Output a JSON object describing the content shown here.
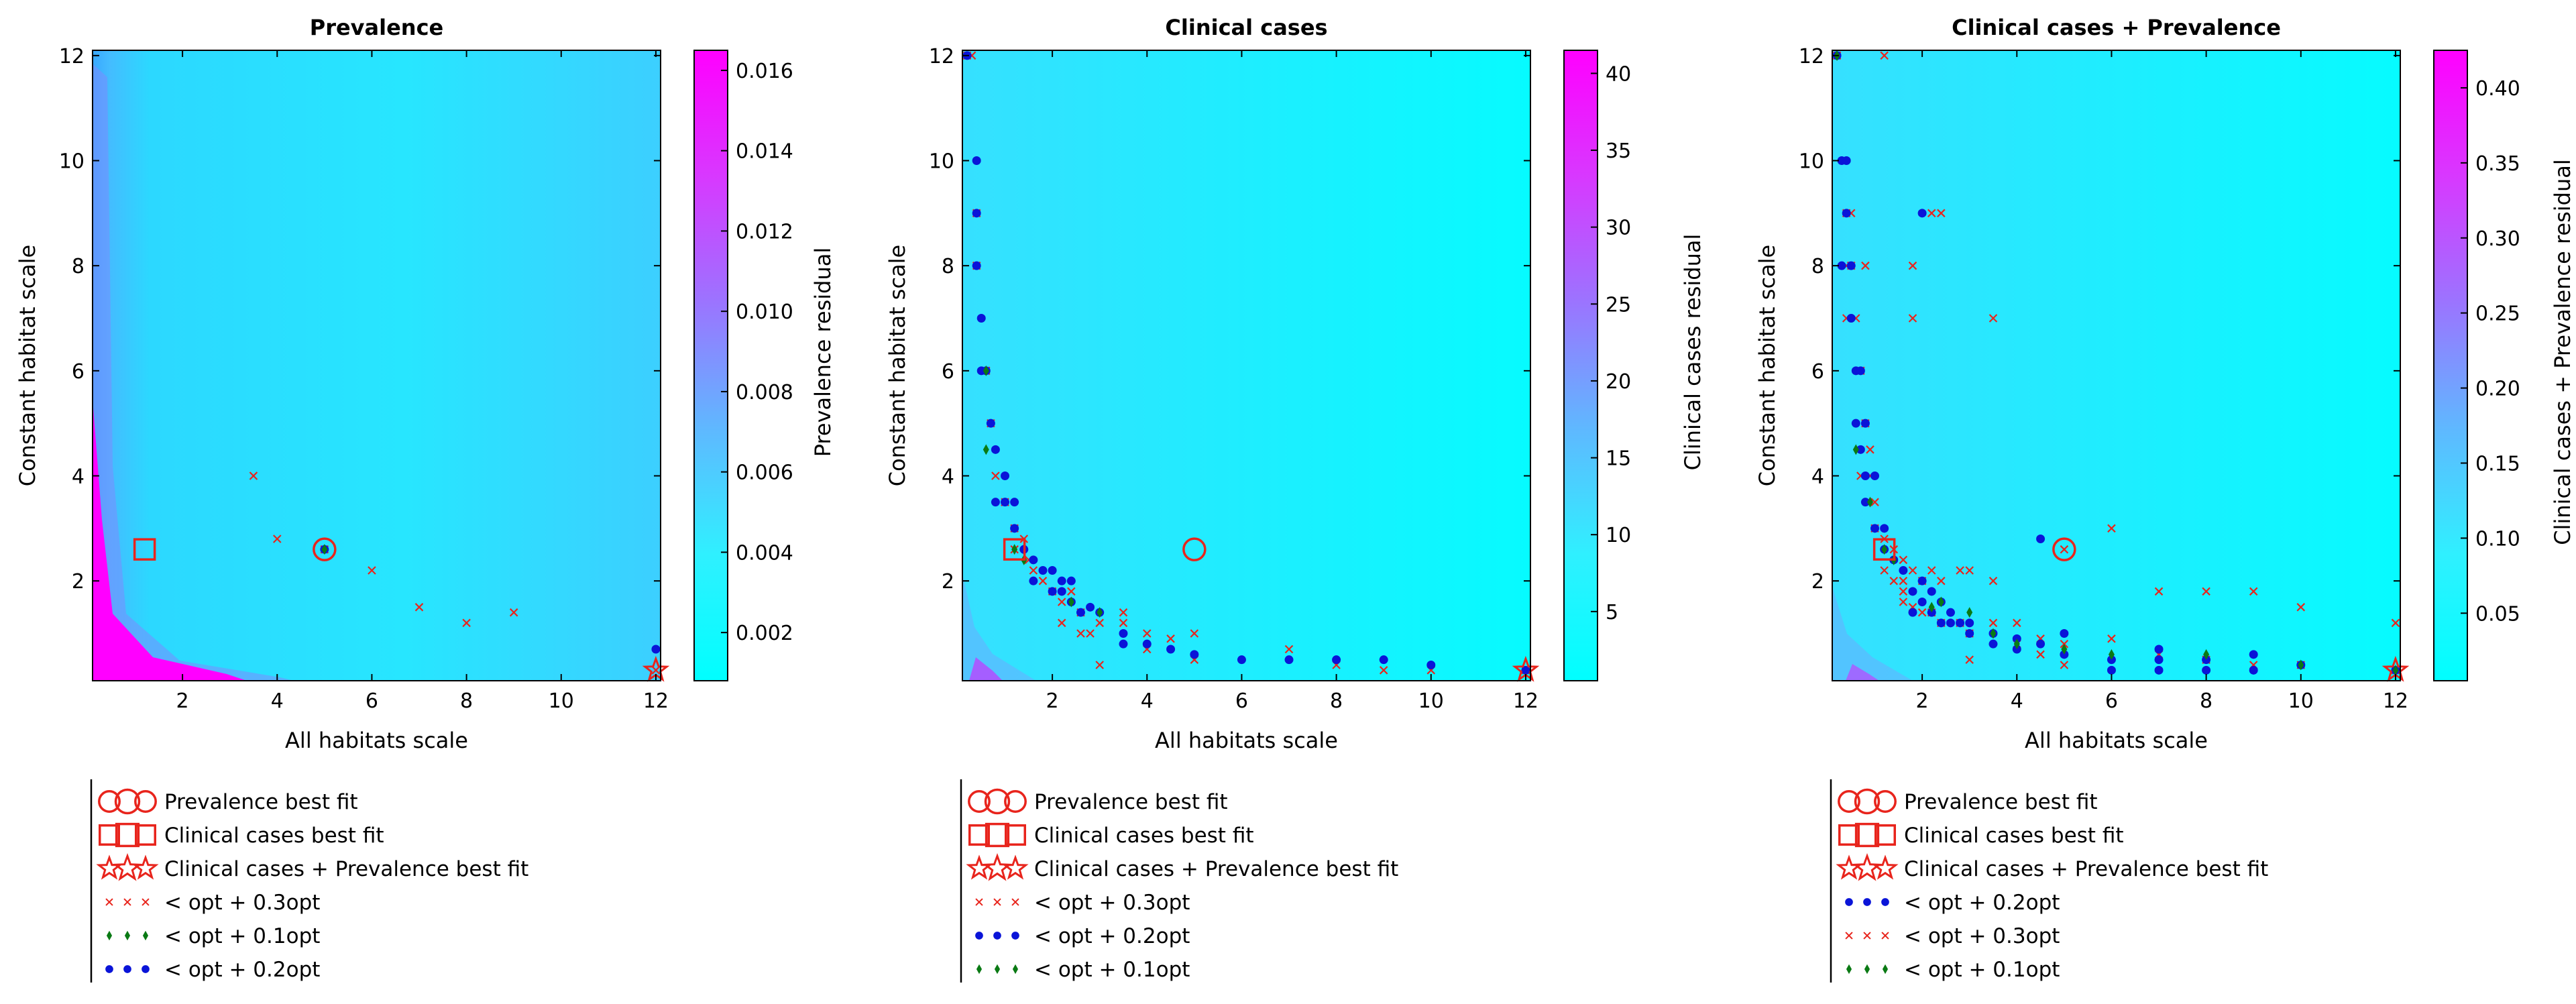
{
  "figure": {
    "colorbar_gradient": [
      "#00ffff",
      "#2ff0ff",
      "#5fb8ff",
      "#9b74ff",
      "#d838ff",
      "#ff00ff"
    ],
    "marker_color_red": "#e8241c",
    "marker_color_blue": "#0a14d8",
    "marker_color_green": "#0a7a14"
  },
  "chart_data": [
    {
      "type": "heatmap",
      "title": "Prevalence",
      "xlabel": "All habitats scale",
      "ylabel": "Constant habitat scale",
      "colorbar_label": "Prevalence residual",
      "xlim": [
        0.1,
        12.1
      ],
      "ylim": [
        0.1,
        12.1
      ],
      "xticks": [
        "2",
        "4",
        "6",
        "8",
        "10",
        "12"
      ],
      "yticks": [
        "2",
        "4",
        "6",
        "8",
        "10",
        "12"
      ],
      "cbar_range": [
        0.0008,
        0.0165
      ],
      "cbar_ticks": [
        "0.002",
        "0.004",
        "0.006",
        "0.008",
        "0.010",
        "0.012",
        "0.014",
        "0.016"
      ],
      "prevalence_best": [
        5.0,
        2.6
      ],
      "clinical_best": [
        1.2,
        2.6
      ],
      "combined_best": [
        12.0,
        0.3
      ],
      "points_x_03": [
        [
          3.5,
          4.0
        ],
        [
          4.0,
          2.8
        ],
        [
          5.0,
          2.6
        ],
        [
          6.0,
          2.2
        ],
        [
          7.0,
          1.5
        ],
        [
          8.0,
          1.2
        ],
        [
          9.0,
          1.4
        ],
        [
          12.0,
          0.3
        ]
      ],
      "points_green_01": [
        [
          5.0,
          2.6
        ]
      ],
      "points_blue_02": [
        [
          5.0,
          2.6
        ],
        [
          12.0,
          0.7
        ]
      ],
      "legend": [
        {
          "marker": "circle",
          "label": "Prevalence best fit"
        },
        {
          "marker": "square",
          "label": "Clinical cases best fit"
        },
        {
          "marker": "star",
          "label": "Clinical cases + Prevalence best fit"
        },
        {
          "marker": "x",
          "label": "< opt + 0.3opt"
        },
        {
          "marker": "diamond",
          "label": "< opt + 0.1opt"
        },
        {
          "marker": "dot",
          "label": "< opt + 0.2opt"
        }
      ]
    },
    {
      "type": "heatmap",
      "title": "Clinical cases",
      "xlabel": "All habitats scale",
      "ylabel": "Constant habitat scale",
      "colorbar_label": "Clinical cases residual",
      "xlim": [
        0.1,
        12.1
      ],
      "ylim": [
        0.1,
        12.1
      ],
      "xticks": [
        "2",
        "4",
        "6",
        "8",
        "10",
        "12"
      ],
      "yticks": [
        "2",
        "4",
        "6",
        "8",
        "10",
        "12"
      ],
      "cbar_range": [
        0.5,
        41.5
      ],
      "cbar_ticks": [
        "5",
        "10",
        "15",
        "20",
        "25",
        "30",
        "35",
        "40"
      ],
      "prevalence_best": [
        5.0,
        2.6
      ],
      "clinical_best": [
        1.2,
        2.6
      ],
      "combined_best": [
        12.0,
        0.3
      ],
      "points_x_03": [
        [
          0.2,
          12.0
        ],
        [
          0.3,
          12.0
        ],
        [
          0.4,
          9.0
        ],
        [
          0.4,
          8.0
        ],
        [
          0.6,
          6.0
        ],
        [
          0.7,
          5.0
        ],
        [
          0.8,
          4.0
        ],
        [
          1.0,
          3.5
        ],
        [
          1.2,
          3.0
        ],
        [
          1.4,
          2.8
        ],
        [
          1.2,
          2.6
        ],
        [
          1.5,
          2.4
        ],
        [
          1.6,
          2.2
        ],
        [
          1.8,
          2.0
        ],
        [
          2.0,
          1.8
        ],
        [
          2.2,
          1.6
        ],
        [
          2.6,
          1.4
        ],
        [
          3.0,
          1.2
        ],
        [
          3.5,
          1.4
        ],
        [
          4.0,
          1.0
        ],
        [
          4.5,
          0.9
        ],
        [
          5.0,
          1.0
        ],
        [
          2.2,
          1.2
        ],
        [
          2.6,
          1.0
        ],
        [
          3.0,
          0.4
        ],
        [
          4.0,
          0.7
        ],
        [
          5.0,
          0.5
        ],
        [
          7.0,
          0.7
        ],
        [
          8.0,
          0.4
        ],
        [
          9.0,
          0.3
        ],
        [
          10.0,
          0.3
        ],
        [
          12.0,
          0.3
        ],
        [
          3.5,
          1.2
        ],
        [
          2.4,
          1.8
        ],
        [
          2.8,
          1.0
        ]
      ],
      "points_green_01": [
        [
          0.6,
          6.0
        ],
        [
          0.6,
          4.5
        ],
        [
          1.2,
          2.6
        ],
        [
          1.4,
          2.4
        ],
        [
          2.4,
          1.6
        ],
        [
          3.0,
          1.4
        ]
      ],
      "points_blue_02": [
        [
          0.2,
          12.0
        ],
        [
          0.4,
          10.0
        ],
        [
          0.4,
          9.0
        ],
        [
          0.4,
          8.0
        ],
        [
          0.5,
          7.0
        ],
        [
          0.5,
          6.0
        ],
        [
          0.6,
          6.0
        ],
        [
          0.7,
          5.0
        ],
        [
          0.8,
          4.5
        ],
        [
          1.0,
          4.0
        ],
        [
          0.8,
          3.5
        ],
        [
          1.0,
          3.5
        ],
        [
          1.2,
          3.5
        ],
        [
          1.2,
          3.0
        ],
        [
          1.4,
          2.6
        ],
        [
          1.6,
          2.4
        ],
        [
          1.6,
          2.0
        ],
        [
          1.8,
          2.2
        ],
        [
          2.0,
          2.2
        ],
        [
          2.2,
          2.0
        ],
        [
          2.4,
          2.0
        ],
        [
          2.2,
          1.8
        ],
        [
          2.4,
          1.6
        ],
        [
          2.6,
          1.4
        ],
        [
          2.8,
          1.5
        ],
        [
          3.0,
          1.4
        ],
        [
          3.5,
          1.0
        ],
        [
          4.0,
          0.8
        ],
        [
          4.5,
          0.7
        ],
        [
          5.0,
          0.6
        ],
        [
          6.0,
          0.5
        ],
        [
          7.0,
          0.5
        ],
        [
          8.0,
          0.5
        ],
        [
          9.0,
          0.5
        ],
        [
          10.0,
          0.4
        ],
        [
          12.0,
          0.3
        ],
        [
          2.0,
          1.8
        ],
        [
          3.5,
          0.8
        ]
      ],
      "legend": [
        {
          "marker": "circle",
          "label": "Prevalence best fit"
        },
        {
          "marker": "square",
          "label": "Clinical cases best fit"
        },
        {
          "marker": "star",
          "label": "Clinical cases + Prevalence best fit"
        },
        {
          "marker": "x",
          "label": "< opt + 0.3opt"
        },
        {
          "marker": "dot",
          "label": "< opt + 0.2opt"
        },
        {
          "marker": "diamond",
          "label": "< opt + 0.1opt"
        }
      ]
    },
    {
      "type": "heatmap",
      "title": "Clinical cases + Prevalence",
      "xlabel": "All habitats scale",
      "ylabel": "Constant habitat scale",
      "colorbar_label": "Clinical cases + Prevalence residual",
      "xlim": [
        0.1,
        12.1
      ],
      "ylim": [
        0.1,
        12.1
      ],
      "xticks": [
        "2",
        "4",
        "6",
        "8",
        "10",
        "12"
      ],
      "yticks": [
        "2",
        "4",
        "6",
        "8",
        "10",
        "12"
      ],
      "cbar_range": [
        0.005,
        0.425
      ],
      "cbar_ticks": [
        "0.05",
        "0.10",
        "0.15",
        "0.20",
        "0.25",
        "0.30",
        "0.35",
        "0.40"
      ],
      "prevalence_best": [
        5.0,
        2.6
      ],
      "clinical_best": [
        1.2,
        2.6
      ],
      "combined_best": [
        12.0,
        0.3
      ],
      "points_x_03": [
        [
          0.2,
          12.0
        ],
        [
          1.2,
          12.0
        ],
        [
          0.4,
          9.0
        ],
        [
          0.5,
          9.0
        ],
        [
          0.4,
          8.0
        ],
        [
          0.5,
          8.0
        ],
        [
          0.8,
          8.0
        ],
        [
          1.8,
          8.0
        ],
        [
          0.4,
          7.0
        ],
        [
          0.6,
          7.0
        ],
        [
          1.8,
          7.0
        ],
        [
          3.5,
          7.0
        ],
        [
          2.2,
          9.0
        ],
        [
          2.4,
          9.0
        ],
        [
          0.7,
          6.0
        ],
        [
          0.8,
          5.0
        ],
        [
          0.9,
          4.5
        ],
        [
          0.7,
          4.0
        ],
        [
          0.9,
          4.0
        ],
        [
          1.0,
          3.5
        ],
        [
          1.0,
          3.0
        ],
        [
          1.2,
          2.8
        ],
        [
          1.4,
          2.6
        ],
        [
          1.6,
          2.4
        ],
        [
          1.8,
          2.2
        ],
        [
          2.0,
          2.0
        ],
        [
          2.2,
          2.2
        ],
        [
          2.4,
          2.0
        ],
        [
          2.8,
          2.2
        ],
        [
          3.0,
          2.2
        ],
        [
          3.5,
          2.0
        ],
        [
          1.6,
          2.0
        ],
        [
          1.6,
          1.8
        ],
        [
          1.6,
          1.6
        ],
        [
          1.8,
          1.5
        ],
        [
          2.0,
          1.4
        ],
        [
          2.2,
          1.4
        ],
        [
          2.4,
          1.2
        ],
        [
          2.8,
          1.2
        ],
        [
          3.0,
          1.0
        ],
        [
          3.5,
          1.2
        ],
        [
          4.0,
          1.2
        ],
        [
          4.0,
          0.8
        ],
        [
          4.5,
          0.9
        ],
        [
          4.5,
          0.6
        ],
        [
          5.0,
          0.8
        ],
        [
          5.0,
          0.4
        ],
        [
          6.0,
          0.9
        ],
        [
          6.0,
          3.0
        ],
        [
          7.0,
          1.8
        ],
        [
          8.0,
          1.8
        ],
        [
          9.0,
          1.8
        ],
        [
          10.0,
          1.5
        ],
        [
          12.0,
          1.2
        ],
        [
          7.0,
          0.6
        ],
        [
          8.0,
          0.5
        ],
        [
          9.0,
          0.4
        ],
        [
          10.0,
          0.4
        ],
        [
          12.0,
          0.3
        ],
        [
          3.0,
          0.5
        ],
        [
          5.0,
          2.6
        ],
        [
          1.2,
          2.2
        ],
        [
          1.4,
          2.0
        ]
      ],
      "points_green_01": [
        [
          0.2,
          12.0
        ],
        [
          0.6,
          4.5
        ],
        [
          0.9,
          3.5
        ],
        [
          1.2,
          2.6
        ],
        [
          1.4,
          2.4
        ],
        [
          2.2,
          1.5
        ],
        [
          2.4,
          1.6
        ],
        [
          3.0,
          1.4
        ],
        [
          3.5,
          1.0
        ],
        [
          4.0,
          0.8
        ],
        [
          5.0,
          0.7
        ],
        [
          6.0,
          0.6
        ],
        [
          8.0,
          0.6
        ],
        [
          10.0,
          0.4
        ],
        [
          12.0,
          0.3
        ]
      ],
      "points_blue_02": [
        [
          0.2,
          12.0
        ],
        [
          0.3,
          10.0
        ],
        [
          0.4,
          10.0
        ],
        [
          0.4,
          9.0
        ],
        [
          0.3,
          8.0
        ],
        [
          0.5,
          8.0
        ],
        [
          0.5,
          7.0
        ],
        [
          0.6,
          6.0
        ],
        [
          0.7,
          6.0
        ],
        [
          0.6,
          5.0
        ],
        [
          0.8,
          5.0
        ],
        [
          0.7,
          4.5
        ],
        [
          0.8,
          4.0
        ],
        [
          1.0,
          4.0
        ],
        [
          0.8,
          3.5
        ],
        [
          1.0,
          3.0
        ],
        [
          1.2,
          3.0
        ],
        [
          1.2,
          2.6
        ],
        [
          1.4,
          2.4
        ],
        [
          1.6,
          2.2
        ],
        [
          1.8,
          1.8
        ],
        [
          2.0,
          2.0
        ],
        [
          2.0,
          1.6
        ],
        [
          2.2,
          1.8
        ],
        [
          2.2,
          1.4
        ],
        [
          2.4,
          1.6
        ],
        [
          2.4,
          1.2
        ],
        [
          2.6,
          1.4
        ],
        [
          2.8,
          1.2
        ],
        [
          3.0,
          1.2
        ],
        [
          3.0,
          1.0
        ],
        [
          3.5,
          1.0
        ],
        [
          3.5,
          0.8
        ],
        [
          4.0,
          0.9
        ],
        [
          4.0,
          0.7
        ],
        [
          4.5,
          0.8
        ],
        [
          5.0,
          1.0
        ],
        [
          5.0,
          0.6
        ],
        [
          6.0,
          0.5
        ],
        [
          6.0,
          0.3
        ],
        [
          7.0,
          0.7
        ],
        [
          7.0,
          0.5
        ],
        [
          7.0,
          0.3
        ],
        [
          8.0,
          0.5
        ],
        [
          8.0,
          0.3
        ],
        [
          9.0,
          0.6
        ],
        [
          9.0,
          0.3
        ],
        [
          10.0,
          0.4
        ],
        [
          12.0,
          0.3
        ],
        [
          4.5,
          2.8
        ],
        [
          2.0,
          9.0
        ],
        [
          1.8,
          1.4
        ],
        [
          2.6,
          1.2
        ]
      ],
      "legend": [
        {
          "marker": "circle",
          "label": "Prevalence best fit"
        },
        {
          "marker": "square",
          "label": "Clinical cases best fit"
        },
        {
          "marker": "star",
          "label": "Clinical cases + Prevalence best fit"
        },
        {
          "marker": "dot",
          "label": "< opt + 0.2opt"
        },
        {
          "marker": "x",
          "label": "< opt + 0.3opt"
        },
        {
          "marker": "diamond",
          "label": "< opt + 0.1opt"
        }
      ]
    }
  ]
}
